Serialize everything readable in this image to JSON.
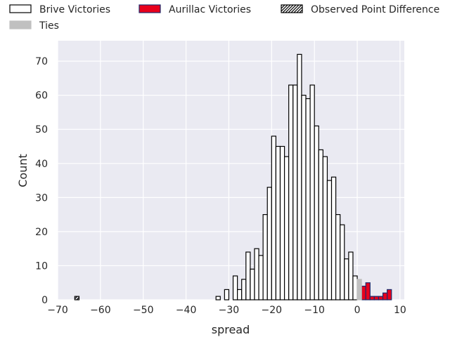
{
  "chart_data": {
    "type": "bar",
    "xlabel": "spread",
    "ylabel": "Count",
    "xlim": [
      -70,
      11
    ],
    "ylim": [
      0,
      76
    ],
    "xticks": [
      -70,
      -60,
      -50,
      -40,
      -30,
      -20,
      -10,
      0,
      10
    ],
    "yticks": [
      0,
      10,
      20,
      30,
      40,
      50,
      60,
      70
    ],
    "grid": true,
    "legend_position": "top",
    "series": [
      {
        "name": "Brive Victories",
        "color": "#ffffff",
        "edge": "#000000",
        "bins": [
          {
            "x": -33,
            "count": 1
          },
          {
            "x": -31,
            "count": 3
          },
          {
            "x": -29,
            "count": 7
          },
          {
            "x": -28,
            "count": 3
          },
          {
            "x": -27,
            "count": 6
          },
          {
            "x": -26,
            "count": 14
          },
          {
            "x": -25,
            "count": 9
          },
          {
            "x": -24,
            "count": 15
          },
          {
            "x": -23,
            "count": 13
          },
          {
            "x": -22,
            "count": 25
          },
          {
            "x": -21,
            "count": 33
          },
          {
            "x": -20,
            "count": 48
          },
          {
            "x": -19,
            "count": 45
          },
          {
            "x": -18,
            "count": 45
          },
          {
            "x": -17,
            "count": 42
          },
          {
            "x": -16,
            "count": 63
          },
          {
            "x": -15,
            "count": 63
          },
          {
            "x": -14,
            "count": 72
          },
          {
            "x": -13,
            "count": 60
          },
          {
            "x": -12,
            "count": 59
          },
          {
            "x": -11,
            "count": 63
          },
          {
            "x": -10,
            "count": 51
          },
          {
            "x": -9,
            "count": 44
          },
          {
            "x": -8,
            "count": 42
          },
          {
            "x": -7,
            "count": 35
          },
          {
            "x": -6,
            "count": 36
          },
          {
            "x": -5,
            "count": 25
          },
          {
            "x": -4,
            "count": 22
          },
          {
            "x": -3,
            "count": 12
          },
          {
            "x": -2,
            "count": 14
          },
          {
            "x": -1,
            "count": 7
          }
        ]
      },
      {
        "name": "Aurillac Victories",
        "color": "#e8001c",
        "edge": "#1f2a6b",
        "bins": [
          {
            "x": 1,
            "count": 4
          },
          {
            "x": 2,
            "count": 5
          },
          {
            "x": 3,
            "count": 1
          },
          {
            "x": 4,
            "count": 1
          },
          {
            "x": 5,
            "count": 1
          },
          {
            "x": 6,
            "count": 2
          },
          {
            "x": 7,
            "count": 3
          }
        ]
      },
      {
        "name": "Ties",
        "color": "#c0c0c0",
        "edge": "#c0c0c0",
        "bins": [
          {
            "x": 0,
            "count": 6
          }
        ]
      },
      {
        "name": "Observed Point Difference",
        "color": "#ffffff",
        "edge": "#000000",
        "hatch": true,
        "bins": [
          {
            "x": -66,
            "count": 1
          }
        ]
      }
    ]
  }
}
